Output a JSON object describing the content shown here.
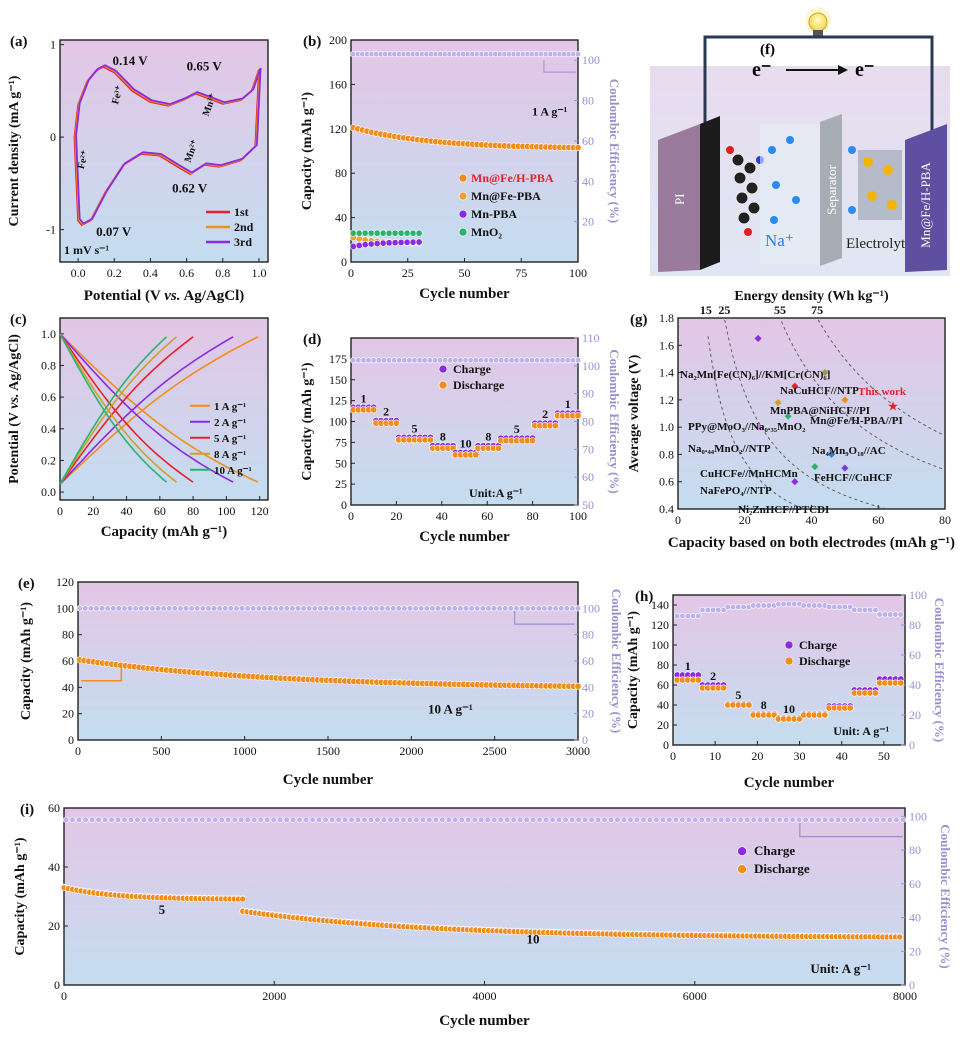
{
  "chart_data": [
    {
      "id": "a",
      "panel_label": "(a)",
      "type": "line",
      "xlabel_parts": [
        "Potential (V ",
        "vs.",
        " Ag/AgCl)"
      ],
      "ylabel": "Current density (mA g⁻¹)",
      "xlim": [
        -0.1,
        1.05
      ],
      "ylim": [
        -1.35,
        1.05
      ],
      "xticks": [
        0.0,
        0.2,
        0.4,
        0.6,
        0.8,
        1.0
      ],
      "xtick_labels": [
        "0.0",
        "0.2",
        "0.4",
        "0.6",
        "0.8",
        "1.0"
      ],
      "yticks": [
        -1,
        0,
        1
      ],
      "ytick_labels": [
        "-1",
        "0",
        "1"
      ],
      "series": [
        {
          "name": "1st",
          "color": "#e8202a"
        },
        {
          "name": "2nd",
          "color": "#f28c1b"
        },
        {
          "name": "3rd",
          "color": "#8a2be2"
        }
      ],
      "shape_upper": [
        [
          0.0,
          0.35
        ],
        [
          0.05,
          0.6
        ],
        [
          0.1,
          0.72
        ],
        [
          0.14,
          0.76
        ],
        [
          0.2,
          0.7
        ],
        [
          0.3,
          0.5
        ],
        [
          0.4,
          0.38
        ],
        [
          0.5,
          0.34
        ],
        [
          0.58,
          0.4
        ],
        [
          0.65,
          0.47
        ],
        [
          0.72,
          0.42
        ],
        [
          0.8,
          0.36
        ],
        [
          0.9,
          0.4
        ],
        [
          0.96,
          0.5
        ],
        [
          1.0,
          0.73
        ]
      ],
      "shape_lower": [
        [
          1.0,
          0.73
        ],
        [
          0.98,
          -0.1
        ],
        [
          0.9,
          -0.25
        ],
        [
          0.78,
          -0.32
        ],
        [
          0.7,
          -0.3
        ],
        [
          0.62,
          -0.4
        ],
        [
          0.55,
          -0.32
        ],
        [
          0.45,
          -0.2
        ],
        [
          0.35,
          -0.18
        ],
        [
          0.25,
          -0.3
        ],
        [
          0.15,
          -0.6
        ],
        [
          0.07,
          -0.9
        ],
        [
          0.02,
          -0.95
        ],
        [
          0.0,
          -0.9
        ],
        [
          -0.02,
          0.0
        ],
        [
          0.0,
          0.35
        ]
      ],
      "annotations": [
        "0.14 V",
        "0.65 V",
        "0.62 V",
        "0.07 V",
        "Fe²⁺",
        "Fe³⁺",
        "Mn²⁺",
        "Mn³⁺",
        "1 mV s⁻¹"
      ]
    },
    {
      "id": "b",
      "panel_label": "(b)",
      "type": "scatter",
      "xlabel": "Cycle number",
      "ylabel": "Capacity (mAh g⁻¹)",
      "ylabel2": "Coulombic Efficiency (%)",
      "xlim": [
        0,
        100
      ],
      "ylim": [
        0,
        200
      ],
      "y2lim": [
        0,
        110
      ],
      "xticks": [
        0,
        25,
        50,
        75,
        100
      ],
      "yticks": [
        0,
        40,
        80,
        120,
        160,
        200
      ],
      "y2ticks": [
        20,
        40,
        60,
        80,
        100
      ],
      "condition": "1 A g⁻¹",
      "series": [
        {
          "name": "Mn@Fe/H-PBA",
          "color": "#f28c1b",
          "legend_color": "#e8202a",
          "x_start": 1,
          "x_end": 100,
          "y_start": 121,
          "y_end": 103
        },
        {
          "name": "Mn@Fe-PBA",
          "color": "#e9a23b",
          "x_start": 1,
          "x_end": 30,
          "y_start": 22,
          "y_end": 17
        },
        {
          "name": "Mn-PBA",
          "color": "#8a2be2",
          "x_start": 1,
          "x_end": 30,
          "y_start": 14,
          "y_end": 18
        },
        {
          "name": "MnO₂",
          "color": "#2bb36b",
          "x_start": 1,
          "x_end": 30,
          "y_start": 26,
          "y_end": 26
        }
      ],
      "ce_value": 103
    },
    {
      "id": "c",
      "panel_label": "(c)",
      "type": "line",
      "xlabel": "Capacity (mAh g⁻¹)",
      "ylabel_parts": [
        "Potential (V ",
        "vs.",
        " Ag/AgCl)"
      ],
      "xlim": [
        0,
        125
      ],
      "ylim": [
        -0.05,
        1.1
      ],
      "xticks": [
        0,
        20,
        40,
        60,
        80,
        100,
        120
      ],
      "yticks": [
        0.0,
        0.2,
        0.4,
        0.6,
        0.8,
        1.0
      ],
      "ytick_labels": [
        "0.0",
        "0.2",
        "0.4",
        "0.6",
        "0.8",
        "1.0"
      ],
      "series": [
        {
          "name": "1 A g⁻¹",
          "color": "#f28c1b",
          "capacity": 119
        },
        {
          "name": "2 A g⁻¹",
          "color": "#8a2be2",
          "capacity": 104
        },
        {
          "name": "5 A g⁻¹",
          "color": "#e8202a",
          "capacity": 80
        },
        {
          "name": "8 A g⁻¹",
          "color": "#c9a227",
          "capacity": 70
        },
        {
          "name": "10 A g⁻¹",
          "color": "#2bb36b",
          "capacity": 64
        }
      ]
    },
    {
      "id": "d",
      "panel_label": "(d)",
      "type": "scatter",
      "xlabel": "Cycle number",
      "ylabel": "Capacity (mAh g⁻¹)",
      "ylabel2": "Coulombic Efficiency (%)",
      "xlim": [
        0,
        100
      ],
      "ylim": [
        0,
        200
      ],
      "y2lim": [
        50,
        110
      ],
      "xticks": [
        0,
        20,
        40,
        60,
        80,
        100
      ],
      "yticks": [
        0,
        25,
        50,
        75,
        100,
        125,
        150,
        175
      ],
      "y2ticks": [
        50,
        60,
        70,
        80,
        90,
        100,
        110
      ],
      "unit_label": "Unit:A g⁻¹",
      "series": [
        {
          "name": "Charge",
          "color": "#8a2be2"
        },
        {
          "name": "Discharge",
          "color": "#f28c1b"
        }
      ],
      "steps": [
        {
          "label": "1",
          "x_start": 1,
          "x_end": 10,
          "capacity": 115
        },
        {
          "label": "2",
          "x_start": 11,
          "x_end": 20,
          "capacity": 99
        },
        {
          "label": "5",
          "x_start": 21,
          "x_end": 35,
          "capacity": 79
        },
        {
          "label": "8",
          "x_start": 36,
          "x_end": 45,
          "capacity": 69
        },
        {
          "label": "10",
          "x_start": 46,
          "x_end": 55,
          "capacity": 61
        },
        {
          "label": "8",
          "x_start": 56,
          "x_end": 65,
          "capacity": 69
        },
        {
          "label": "5",
          "x_start": 66,
          "x_end": 80,
          "capacity": 78
        },
        {
          "label": "2",
          "x_start": 81,
          "x_end": 90,
          "capacity": 96
        },
        {
          "label": "1",
          "x_start": 91,
          "x_end": 100,
          "capacity": 108
        }
      ],
      "ce_value": 102
    },
    {
      "id": "e",
      "panel_label": "(e)",
      "type": "scatter",
      "xlabel": "Cycle number",
      "ylabel": "Capacity (mAh g⁻¹)",
      "ylabel2": "Coulombic Efficiency (%)",
      "xlim": [
        0,
        3000
      ],
      "ylim": [
        0,
        120
      ],
      "y2lim": [
        0,
        120
      ],
      "xticks": [
        0,
        500,
        1000,
        1500,
        2000,
        2500,
        3000
      ],
      "yticks": [
        0,
        20,
        40,
        60,
        80,
        100,
        120
      ],
      "y2ticks": [
        0,
        20,
        40,
        60,
        80,
        100
      ],
      "condition": "10 A g⁻¹",
      "capacity_start": 61,
      "capacity_end": 39,
      "ce_value": 100
    },
    {
      "id": "g",
      "panel_label": "(g)",
      "type": "scatter",
      "title": "Energy density (Wh kg⁻¹)",
      "xlabel": "Capacity based on both electrodes (mAh g⁻¹)",
      "ylabel": "Average voltage (V)",
      "xlim": [
        0,
        80
      ],
      "ylim": [
        0.4,
        1.8
      ],
      "xticks": [
        0,
        20,
        40,
        60,
        80
      ],
      "yticks": [
        0.4,
        0.6,
        0.8,
        1.0,
        1.2,
        1.4,
        1.6,
        1.8
      ],
      "ytick_labels": [
        "0.4",
        "0.6",
        "0.8",
        "1.0",
        "1.2",
        "1.4",
        "1.6",
        "1.8"
      ],
      "energy_isolines": [
        15,
        25,
        55,
        75
      ],
      "points": [
        {
          "label": "Na₂Mn[Fe(CN)₆]//KM[Cr(CN)₆]",
          "x": 24,
          "y": 1.65,
          "color": "#8a2be2"
        },
        {
          "label": "NaCuHCF//NTP",
          "x": 44,
          "y": 1.4,
          "color": "#9a9a3a"
        },
        {
          "label": "MnPBA@NiHCF//PI",
          "x": 35,
          "y": 1.3,
          "color": "#e8202a"
        },
        {
          "label": "This work",
          "x": 65,
          "y": 1.16,
          "color": "#e8202a",
          "highlight": true
        },
        {
          "label": "PPy@MoO₃//Na₀.₃₅MnO₂",
          "x": 30,
          "y": 1.18,
          "color": "#c9a227"
        },
        {
          "label": "Mn@Fe/H-PBA//PI",
          "x": 50,
          "y": 1.2,
          "color": "#f28c1b"
        },
        {
          "label": "Na₀.₄₄MnO₂//NTP",
          "x": 24,
          "y": 1.0,
          "color": "#e07ad8"
        },
        {
          "label": "CuHCFe//MnHCMn",
          "x": 33,
          "y": 1.08,
          "color": "#2bb36b"
        },
        {
          "label": "Na₄Mn₉O₁₈//AC",
          "x": 46,
          "y": 0.8,
          "color": "#2a7de1"
        },
        {
          "label": "NaFePO₄//NTP",
          "x": 41,
          "y": 0.71,
          "color": "#2bb36b"
        },
        {
          "label": "FeHCF//CuHCF",
          "x": 50,
          "y": 0.7,
          "color": "#7a3ad8"
        },
        {
          "label": "Ni₂ZnHCF//PTCDI",
          "x": 35,
          "y": 0.6,
          "color": "#8a2be2"
        }
      ]
    },
    {
      "id": "h",
      "panel_label": "(h)",
      "type": "scatter",
      "xlabel": "Cycle number",
      "ylabel": "Capacity (mAh g⁻¹)",
      "ylabel2": "Coulombic Efficiency (%)",
      "xlim": [
        0,
        55
      ],
      "ylim": [
        0,
        150
      ],
      "y2lim": [
        0,
        100
      ],
      "xticks": [
        0,
        10,
        20,
        30,
        40,
        50
      ],
      "yticks": [
        0,
        20,
        40,
        60,
        80,
        100,
        120,
        140
      ],
      "y2ticks": [
        0,
        20,
        40,
        60,
        80,
        100
      ],
      "unit_label": "Unit: A g⁻¹",
      "series": [
        {
          "name": "Charge",
          "color": "#8a2be2"
        },
        {
          "name": "Discharge",
          "color": "#f28c1b"
        }
      ],
      "steps": [
        {
          "label": "1",
          "x_start": 1,
          "x_end": 6,
          "charge": 70,
          "discharge": 65
        },
        {
          "label": "2",
          "x_start": 7,
          "x_end": 12,
          "charge": 60,
          "discharge": 57
        },
        {
          "label": "5",
          "x_start": 13,
          "x_end": 18,
          "charge": 41,
          "discharge": 40
        },
        {
          "label": "8",
          "x_start": 19,
          "x_end": 24,
          "charge": 31,
          "discharge": 30
        },
        {
          "label": "10",
          "x_start": 25,
          "x_end": 30,
          "charge": 27,
          "discharge": 26
        },
        {
          "label": "",
          "x_start": 31,
          "x_end": 36,
          "charge": 31,
          "discharge": 30
        },
        {
          "label": "",
          "x_start": 37,
          "x_end": 42,
          "charge": 39,
          "discharge": 37
        },
        {
          "label": "",
          "x_start": 43,
          "x_end": 48,
          "charge": 55,
          "discharge": 52
        },
        {
          "label": "",
          "x_start": 49,
          "x_end": 54,
          "charge": 66,
          "discharge": 62
        }
      ],
      "ce_steps": [
        86,
        90,
        92,
        93,
        94,
        93,
        92,
        90,
        87
      ]
    },
    {
      "id": "i",
      "panel_label": "(i)",
      "type": "scatter",
      "xlabel": "Cycle number",
      "ylabel": "Capacity (mAh g⁻¹)",
      "ylabel2": "Coulombic Efficiency (%)",
      "xlim": [
        0,
        8000
      ],
      "ylim": [
        0,
        60
      ],
      "y2lim": [
        0,
        105
      ],
      "xticks": [
        0,
        2000,
        4000,
        6000,
        8000
      ],
      "yticks": [
        0,
        20,
        40,
        60
      ],
      "y2ticks": [
        0,
        20,
        40,
        60,
        80,
        100
      ],
      "unit_label": "Unit: A g⁻¹",
      "series": [
        {
          "name": "Charge",
          "color": "#8a2be2"
        },
        {
          "name": "Discharge",
          "color": "#f28c1b"
        }
      ],
      "segments": [
        {
          "label": "5",
          "x_start": 0,
          "x_end": 1700,
          "y_start": 33,
          "y_end": 29
        },
        {
          "label": "10",
          "x_start": 1700,
          "x_end": 7950,
          "y_start": 25,
          "y_end": 16
        }
      ],
      "ce_value": 98
    }
  ],
  "schematic": {
    "panel_label": "(f)",
    "electron_left": "e⁻",
    "electron_right": "e⁻",
    "left_electrode": "PI",
    "separator": "Separator",
    "ion": "Na⁺",
    "electrolyte": "Electrolyte",
    "right_electrode": "Mn@Fe/H-PBA"
  }
}
